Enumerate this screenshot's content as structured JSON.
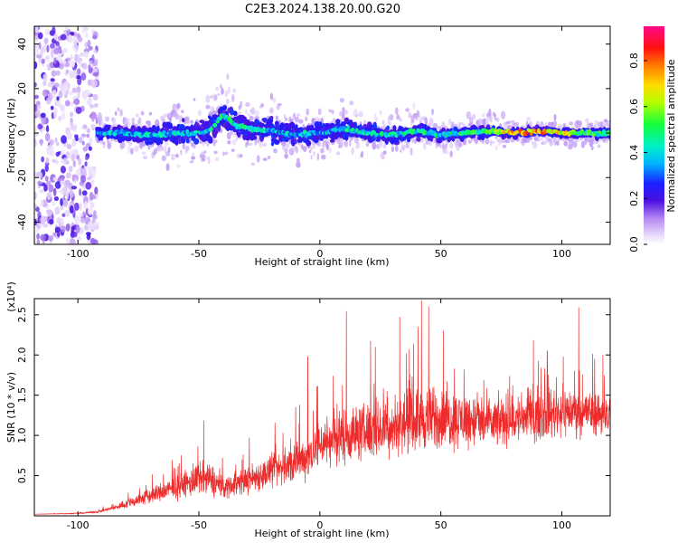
{
  "title": "C2E3.2024.138.20.00.G20",
  "colors": {
    "snr_line": "#ee2b2b",
    "noise_low": "#e8d7fb",
    "noise_mid": "#b98af0",
    "noise_high": "#6a1fd6",
    "signal_core": "#3b2bff"
  },
  "chart_data": [
    {
      "type": "heatmap",
      "title": "C2E3.2024.138.20.00.G20",
      "xlabel": "Height of straight line (km)",
      "ylabel": "Frequency (Hz)",
      "xlim": [
        -118,
        120
      ],
      "ylim": [
        -50,
        48
      ],
      "xticks": [
        -100,
        -50,
        0,
        50,
        100
      ],
      "yticks": [
        40,
        20,
        0,
        -20,
        -40
      ],
      "xtick_labels": [
        "-100",
        "-50",
        "0",
        "50",
        "100"
      ],
      "ytick_labels": [
        "40",
        "20",
        "0",
        "-20",
        "-40"
      ],
      "colorbar": {
        "label": "Normalized spectral amplitude",
        "range": [
          0.0,
          0.95
        ],
        "ticks": [
          0.0,
          0.2,
          0.4,
          0.6,
          0.8
        ],
        "tick_labels": [
          "0.0",
          "0.2",
          "0.4",
          "0.6",
          "0.8"
        ],
        "colormap": "rainbow"
      },
      "noise_region": {
        "x_from": -118,
        "x_to": -92,
        "freq_from": -50,
        "freq_to": 48
      },
      "ridge": {
        "x": [
          -92,
          -80,
          -70,
          -60,
          -50,
          -45,
          -40,
          -35,
          -30,
          -20,
          -10,
          0,
          10,
          20,
          30,
          40,
          50,
          60,
          70,
          80,
          90,
          100,
          110,
          120
        ],
        "freq": [
          0,
          0,
          -1,
          0,
          0,
          2,
          8,
          4,
          2,
          1,
          -1,
          0,
          2,
          0,
          -1,
          1,
          -1,
          0,
          1,
          0,
          1,
          0,
          0,
          0
        ],
        "half_width": [
          3,
          4,
          5,
          6,
          6,
          7,
          8,
          7,
          6,
          6,
          5,
          5,
          5,
          4,
          4,
          4,
          3,
          3,
          3,
          2,
          2,
          2,
          2,
          2
        ],
        "amplitude": [
          0.35,
          0.4,
          0.4,
          0.4,
          0.4,
          0.45,
          0.5,
          0.45,
          0.45,
          0.4,
          0.4,
          0.4,
          0.45,
          0.45,
          0.45,
          0.5,
          0.45,
          0.5,
          0.6,
          0.8,
          0.8,
          0.7,
          0.55,
          0.5
        ]
      }
    },
    {
      "type": "line",
      "xlabel": "Height of straight line (km)",
      "ylabel": "SNR (10 * v/v)",
      "y_multiplier": "(x10⁴)",
      "xlim": [
        -118,
        120
      ],
      "ylim": [
        0,
        2.7
      ],
      "xticks": [
        -100,
        -50,
        0,
        50,
        100
      ],
      "yticks": [
        0.5,
        1.0,
        1.5,
        2.0,
        2.5
      ],
      "xtick_labels": [
        "-100",
        "-50",
        "0",
        "50",
        "100"
      ],
      "ytick_labels": [
        "0.5",
        "1.0",
        "1.5",
        "2.0",
        "2.5"
      ],
      "series": [
        {
          "x": [
            -118,
            -100,
            -92,
            -85,
            -80,
            -70,
            -60,
            -50,
            -45,
            -40,
            -30,
            -20,
            -10,
            -5,
            0,
            10,
            20,
            30,
            40,
            50,
            60,
            70,
            80,
            90,
            100,
            110,
            120
          ],
          "mean": [
            0.02,
            0.03,
            0.05,
            0.1,
            0.15,
            0.25,
            0.35,
            0.45,
            0.45,
            0.35,
            0.45,
            0.55,
            0.65,
            0.75,
            0.9,
            1.0,
            1.05,
            1.1,
            1.2,
            1.2,
            1.2,
            1.15,
            1.2,
            1.25,
            1.3,
            1.3,
            1.25
          ],
          "spread": [
            0.0,
            0.01,
            0.02,
            0.04,
            0.08,
            0.15,
            0.2,
            0.3,
            0.3,
            0.2,
            0.25,
            0.3,
            0.35,
            0.4,
            0.45,
            0.5,
            0.5,
            0.5,
            0.55,
            0.55,
            0.5,
            0.45,
            0.45,
            0.45,
            0.45,
            0.4,
            0.4
          ],
          "peaks": [
            {
              "x": -48,
              "y": 1.18
            },
            {
              "x": -10,
              "y": 1.35
            },
            {
              "x": -5,
              "y": 1.98
            },
            {
              "x": 11,
              "y": 2.54
            },
            {
              "x": 21,
              "y": 2.17
            },
            {
              "x": 33,
              "y": 2.47
            },
            {
              "x": 42,
              "y": 2.68
            },
            {
              "x": 45,
              "y": 2.6
            },
            {
              "x": 51,
              "y": 2.3
            },
            {
              "x": 94,
              "y": 2.05
            },
            {
              "x": 107,
              "y": 2.59
            },
            {
              "x": 117,
              "y": 2.0
            }
          ]
        }
      ]
    }
  ]
}
